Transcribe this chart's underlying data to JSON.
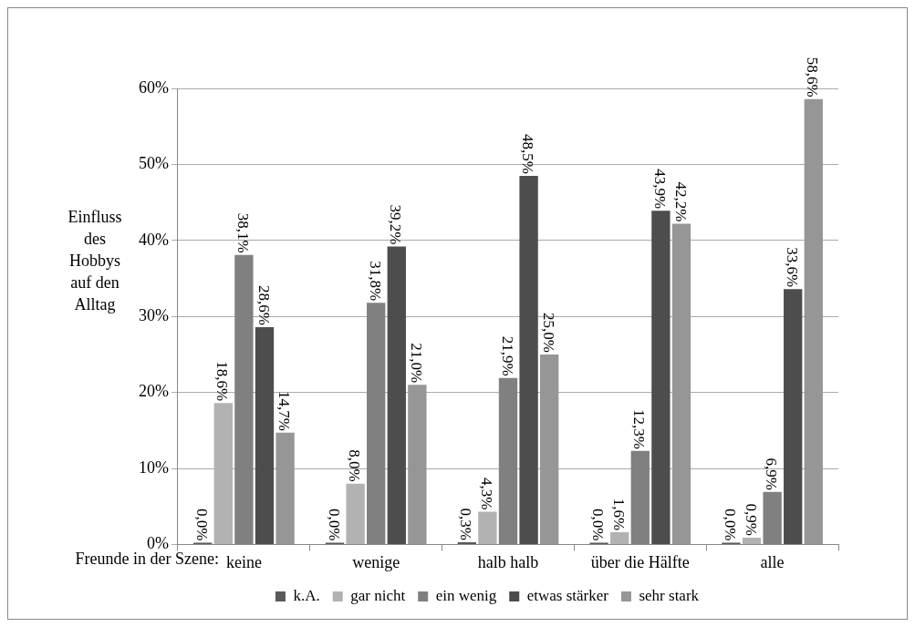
{
  "chart_data": {
    "type": "bar",
    "ylabel": "Einfluss des Hobbys auf den Alltag",
    "xlabel": "Freunde in der Szene:",
    "categories": [
      "keine",
      "wenige",
      "halb halb",
      "über die Hälfte",
      "alle"
    ],
    "series": [
      {
        "name": "k.A.",
        "color": "#595959",
        "values": [
          0,
          0,
          0.3,
          0,
          0
        ],
        "value_labels": [
          "0,0%",
          "0,0%",
          "0,3%",
          "0,0%",
          "0,0%"
        ]
      },
      {
        "name": "gar nicht",
        "color": "#b2b2b2",
        "values": [
          18.6,
          8.0,
          4.3,
          1.6,
          0.9
        ],
        "value_labels": [
          "18,6%",
          "8,0%",
          "4,3%",
          "1,6%",
          "0,9%"
        ]
      },
      {
        "name": "ein wenig",
        "color": "#808080",
        "values": [
          38.1,
          31.8,
          21.9,
          12.3,
          6.9
        ],
        "value_labels": [
          "38,1%",
          "31,8%",
          "21,9%",
          "12,3%",
          "6,9%"
        ]
      },
      {
        "name": "etwas stärker",
        "color": "#4d4d4d",
        "values": [
          28.6,
          39.2,
          48.5,
          43.9,
          33.6
        ],
        "value_labels": [
          "28,6%",
          "39,2%",
          "48,5%",
          "43,9%",
          "33,6%"
        ]
      },
      {
        "name": "sehr stark",
        "color": "#969696",
        "values": [
          14.7,
          21.0,
          25.0,
          42.2,
          58.6
        ],
        "value_labels": [
          "14,7%",
          "21,0%",
          "25,0%",
          "42,2%",
          "58,6%"
        ]
      }
    ],
    "ylim": [
      0,
      60
    ],
    "yticks": [
      {
        "value": 0,
        "label": "0%"
      },
      {
        "value": 10,
        "label": "10%"
      },
      {
        "value": 20,
        "label": "20%"
      },
      {
        "value": 30,
        "label": "30%"
      },
      {
        "value": 40,
        "label": "40%"
      },
      {
        "value": 50,
        "label": "50%"
      },
      {
        "value": 60,
        "label": "60%"
      }
    ],
    "grid": "y",
    "legend": "bottom"
  }
}
